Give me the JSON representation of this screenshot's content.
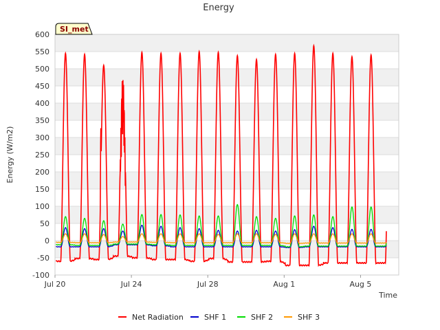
{
  "chart_data": {
    "type": "line",
    "title": "Energy",
    "xlabel": "Time",
    "ylabel": "Energy (W/m2)",
    "site_label": "SI_met",
    "x_range_days": [
      "Jul 20",
      "Aug 7"
    ],
    "ylim": [
      -100,
      600
    ],
    "yticks": [
      -100,
      -50,
      0,
      50,
      100,
      150,
      200,
      250,
      300,
      350,
      400,
      450,
      500,
      550,
      600
    ],
    "xticks": [
      {
        "label": "Jul 20",
        "day": 0
      },
      {
        "label": "Jul 24",
        "day": 4
      },
      {
        "label": "Jul 28",
        "day": 8
      },
      {
        "label": "Aug 1",
        "day": 12
      },
      {
        "label": "Aug 5",
        "day": 16
      }
    ],
    "background_bands": true,
    "grid": true,
    "legend_position": "bottom",
    "days": [
      "Jul 20",
      "Jul 21",
      "Jul 22",
      "Jul 23",
      "Jul 24",
      "Jul 25",
      "Jul 26",
      "Jul 27",
      "Jul 28",
      "Jul 29",
      "Jul 30",
      "Jul 31",
      "Aug 1",
      "Aug 2",
      "Aug 3",
      "Aug 4",
      "Aug 5",
      "Aug 6"
    ],
    "series": [
      {
        "name": "Net Radiation",
        "color": "#ff0000",
        "daily_peak": [
          545,
          542,
          510,
          480,
          548,
          545,
          545,
          550,
          548,
          538,
          527,
          542,
          545,
          567,
          545,
          535,
          540
        ],
        "night_min": [
          -60,
          -52,
          -55,
          -45,
          -50,
          -55,
          -55,
          -60,
          -52,
          -62,
          -62,
          -60,
          -72,
          -72,
          -65,
          -65,
          -65,
          -65
        ]
      },
      {
        "name": "SHF 1",
        "color": "#0000cc",
        "daily_peak": [
          38,
          35,
          35,
          28,
          45,
          42,
          38,
          35,
          30,
          28,
          30,
          28,
          32,
          42,
          38,
          33,
          33
        ],
        "night_min": [
          -18,
          -18,
          -18,
          -12,
          -12,
          -15,
          -18,
          -18,
          -18,
          -18,
          -18,
          -18,
          -20,
          -18,
          -18,
          -18,
          -18,
          -18
        ]
      },
      {
        "name": "SHF 2",
        "color": "#00dd00",
        "daily_peak": [
          70,
          65,
          58,
          48,
          76,
          76,
          75,
          72,
          72,
          105,
          70,
          65,
          72,
          75,
          70,
          98,
          98
        ],
        "night_min": [
          -12,
          -14,
          -14,
          -10,
          -10,
          -12,
          -14,
          -14,
          -14,
          -14,
          -14,
          -14,
          -18,
          -16,
          -16,
          -16,
          -16,
          -16
        ]
      },
      {
        "name": "SHF 3",
        "color": "#ff9900",
        "daily_peak": [
          20,
          20,
          18,
          12,
          20,
          20,
          20,
          20,
          18,
          20,
          20,
          18,
          20,
          20,
          20,
          20,
          20
        ],
        "night_min": [
          -5,
          -6,
          -6,
          -4,
          -4,
          -5,
          -6,
          -6,
          -6,
          -6,
          -6,
          -6,
          -8,
          -7,
          -7,
          -7,
          -7,
          -7
        ]
      }
    ]
  }
}
